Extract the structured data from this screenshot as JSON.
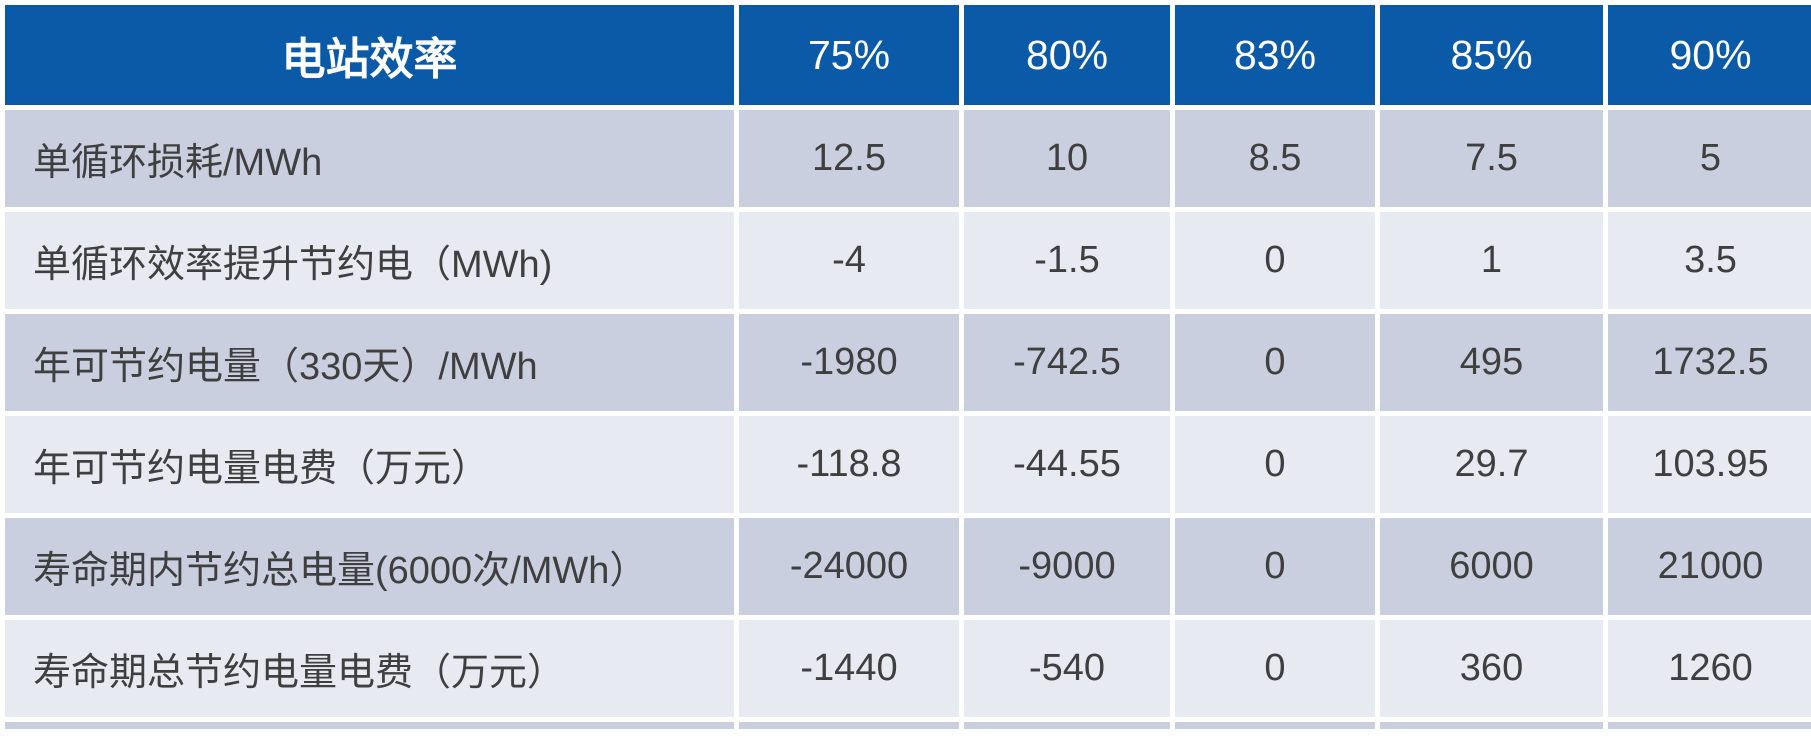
{
  "table": {
    "header": {
      "title": "电站效率",
      "columns": [
        "75%",
        "80%",
        "83%",
        "85%",
        "90%"
      ]
    },
    "rows": [
      {
        "label": "单循环损耗/MWh",
        "values": [
          "12.5",
          "10",
          "8.5",
          "7.5",
          "5"
        ]
      },
      {
        "label": "单循环效率提升节约电（MWh)",
        "values": [
          "-4",
          "-1.5",
          "0",
          "1",
          "3.5"
        ]
      },
      {
        "label": "年可节约电量（330天）/MWh",
        "values": [
          "-1980",
          "-742.5",
          "0",
          "495",
          "1732.5"
        ]
      },
      {
        "label": "年可节约电量电费（万元）",
        "values": [
          "-118.8",
          "-44.55",
          "0",
          "29.7",
          "103.95"
        ]
      },
      {
        "label": "寿命期内节约总电量(6000次/MWh）",
        "values": [
          "-24000",
          "-9000",
          "0",
          "6000",
          "21000"
        ]
      },
      {
        "label": "寿命期总节约电量电费（万元）",
        "values": [
          "-1440",
          "-540",
          "0",
          "360",
          "1260"
        ]
      }
    ],
    "colors": {
      "header_bg": "#0B5AA7",
      "header_text": "#FFFFFF",
      "row_odd_bg": "#CACFDF",
      "row_even_bg": "#E8EAF1",
      "body_text": "#3F3F3F"
    }
  },
  "chart_data": {
    "type": "table",
    "title": "电站效率",
    "categories": [
      "75%",
      "80%",
      "83%",
      "85%",
      "90%"
    ],
    "series": [
      {
        "name": "单循环损耗/MWh",
        "values": [
          12.5,
          10,
          8.5,
          7.5,
          5
        ]
      },
      {
        "name": "单循环效率提升节约电（MWh)",
        "values": [
          -4,
          -1.5,
          0,
          1,
          3.5
        ]
      },
      {
        "name": "年可节约电量（330天）/MWh",
        "values": [
          -1980,
          -742.5,
          0,
          495,
          1732.5
        ]
      },
      {
        "name": "年可节约电量电费（万元）",
        "values": [
          -118.8,
          -44.55,
          0,
          29.7,
          103.95
        ]
      },
      {
        "name": "寿命期内节约总电量(6000次/MWh）",
        "values": [
          -24000,
          -9000,
          0,
          6000,
          21000
        ]
      },
      {
        "name": "寿命期总节约电量电费（万元）",
        "values": [
          -1440,
          -540,
          0,
          360,
          1260
        ]
      }
    ],
    "layout": {
      "header_row": "top",
      "first_column": "row-labels",
      "grid": "white-separators",
      "zebra_rows": true
    }
  }
}
